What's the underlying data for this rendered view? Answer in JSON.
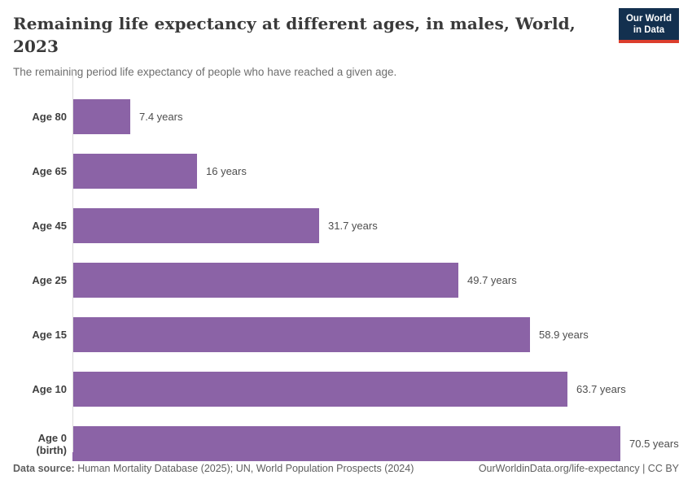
{
  "header": {
    "title": "Remaining life expectancy at different ages, in males, World, 2023",
    "subtitle": "The remaining period life expectancy of people who have reached a given age.",
    "logo": {
      "line1": "Our World",
      "line2": "in Data",
      "bg_color": "#13304f",
      "accent_color": "#dc3e2d"
    }
  },
  "chart_data": {
    "type": "bar",
    "orientation": "horizontal",
    "title": "Remaining life expectancy at different ages, in males, World, 2023",
    "categories": [
      "Age 80",
      "Age 65",
      "Age 45",
      "Age 25",
      "Age 15",
      "Age 10",
      "Age 0 (birth)"
    ],
    "values": [
      7.4,
      16,
      31.7,
      49.7,
      58.9,
      63.7,
      70.5
    ],
    "value_labels": [
      "7.4 years",
      "16 years",
      "31.7 years",
      "49.7 years",
      "58.9 years",
      "63.7 years",
      "70.5 years"
    ],
    "unit": "years",
    "xlim": [
      0,
      70.5
    ],
    "bar_color": "#8b63a6",
    "axis_color": "#dcdcdc",
    "grid": false,
    "legend": "none"
  },
  "footer": {
    "datasource_label": "Data source:",
    "datasource_text": " Human Mortality Database (2025); UN, World Population Prospects (2024)",
    "link_text": "OurWorldinData.org/life-expectancy | CC BY"
  }
}
